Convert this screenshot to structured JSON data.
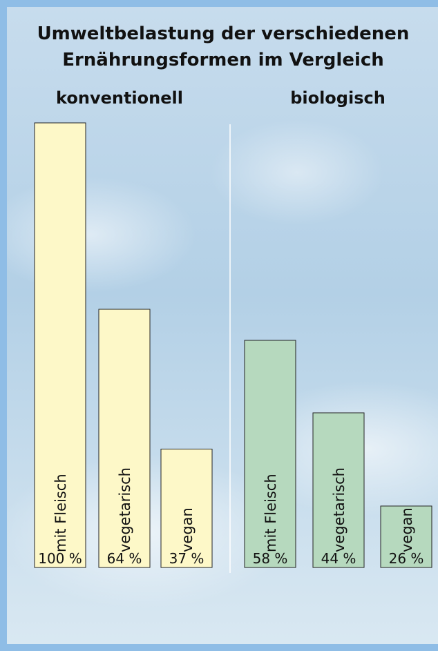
{
  "chart_data": {
    "type": "bar",
    "title": "Umweltbelastung der verschiedenen Ernährungsformen im Vergleich",
    "categories": [
      "mit Fleisch",
      "vegetarisch",
      "vegan"
    ],
    "series": [
      {
        "name": "konventionell",
        "color": "#fdf8c8",
        "values": [
          100,
          64,
          37
        ],
        "value_labels": [
          "100 %",
          "64 %",
          "37 %"
        ]
      },
      {
        "name": "biologisch",
        "color": "#b6d9be",
        "values": [
          58,
          44,
          26
        ],
        "value_labels": [
          "58 %",
          "44 %",
          "26 %"
        ]
      }
    ]
  }
}
